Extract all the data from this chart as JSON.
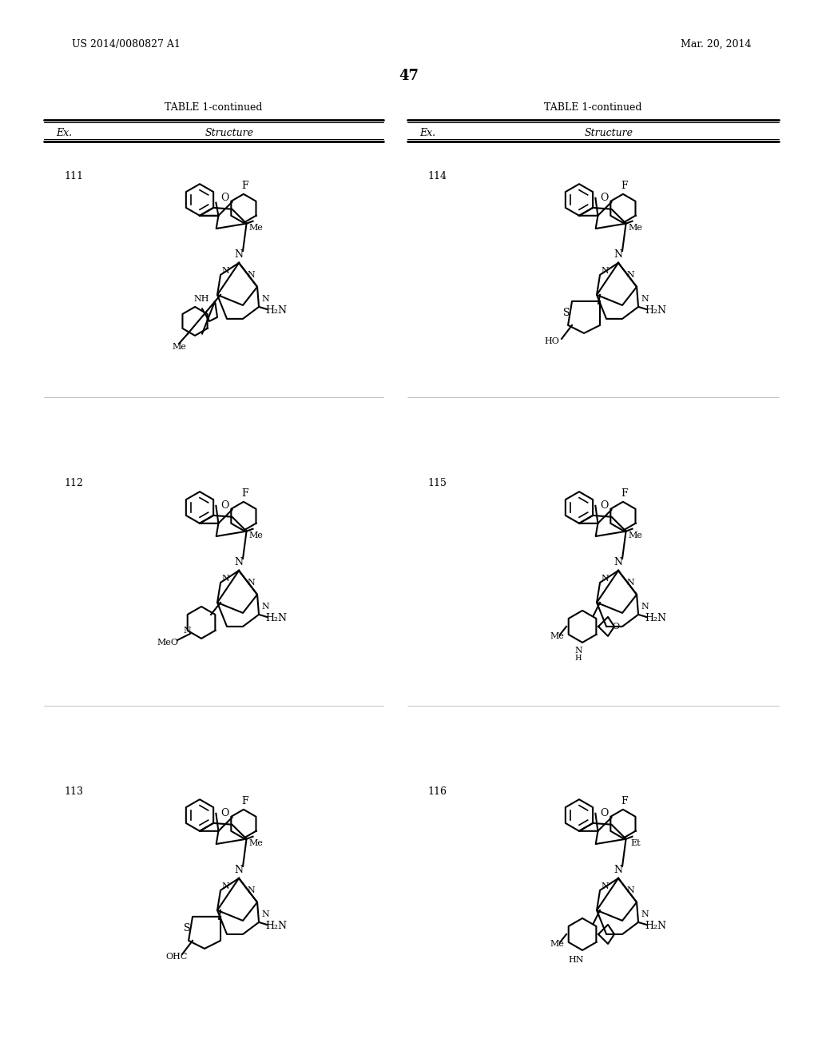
{
  "page_number": "47",
  "patent_number": "US 2014/0080827 A1",
  "patent_date": "Mar. 20, 2014",
  "table_title": "TABLE 1-continued",
  "col_headers": [
    "Ex.",
    "Structure"
  ],
  "background_color": "#ffffff",
  "text_color": "#000000",
  "examples": [
    {
      "id": "111",
      "col": 0,
      "row": 0
    },
    {
      "id": "112",
      "col": 0,
      "row": 1
    },
    {
      "id": "113",
      "col": 0,
      "row": 2
    },
    {
      "id": "114",
      "col": 1,
      "row": 0
    },
    {
      "id": "115",
      "col": 1,
      "row": 1
    },
    {
      "id": "116",
      "col": 1,
      "row": 2
    }
  ]
}
